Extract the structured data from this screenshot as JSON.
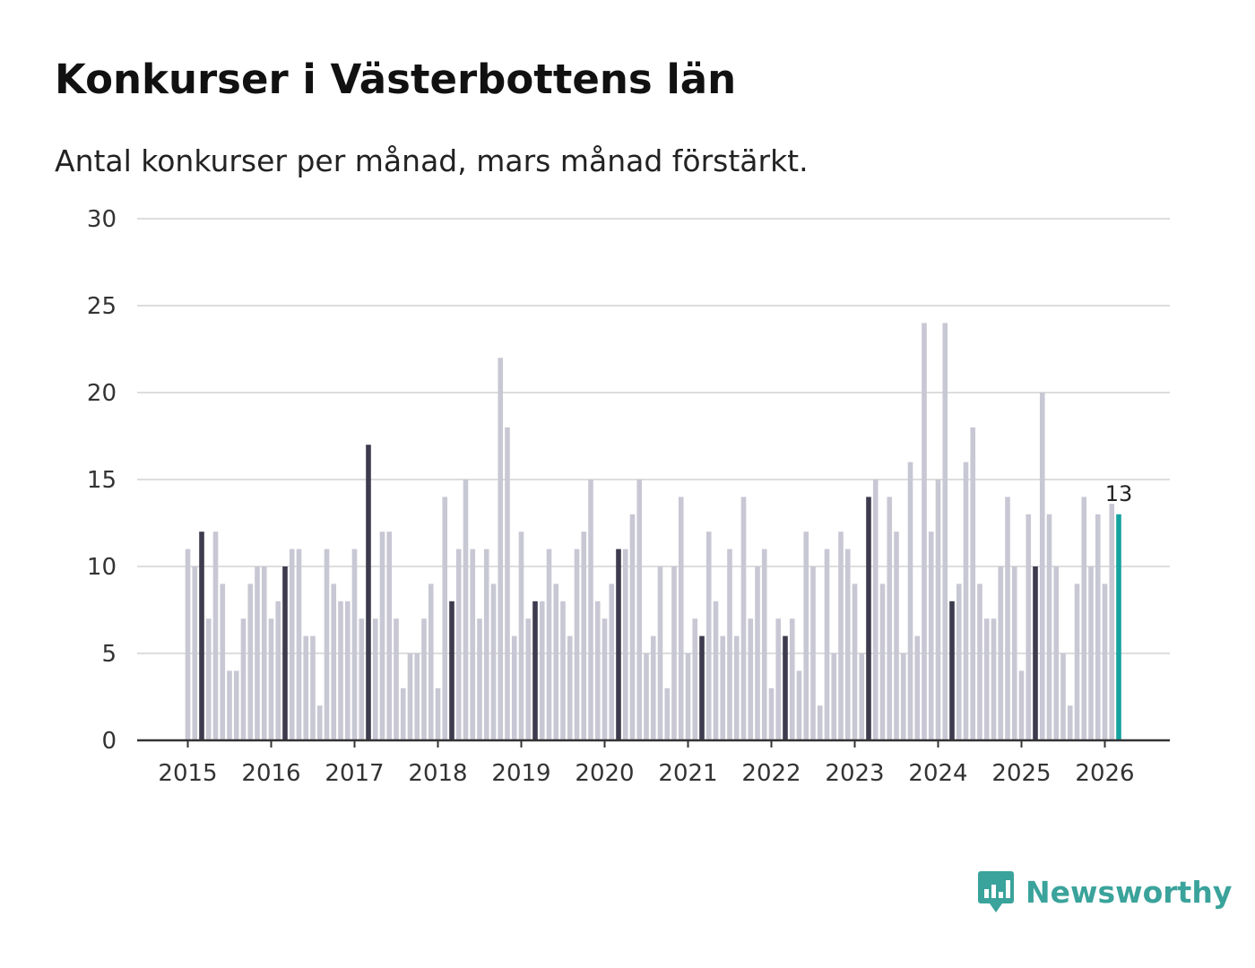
{
  "title": "Konkurser i Västerbottens län",
  "subtitle": "Antal konkurser per månad, mars månad förstärkt.",
  "brand": "Newsworthy",
  "colors": {
    "bar_default": "#c8c7d4",
    "bar_march": "#3d3b4d",
    "bar_latest": "#14a3a0",
    "grid": "#dddddd",
    "axis": "#333333",
    "brand": "#3aa39b"
  },
  "chart_data": {
    "type": "bar",
    "title": "Konkurser i Västerbottens län",
    "xlabel": "",
    "ylabel": "",
    "ylim": [
      0,
      30
    ],
    "yticks": [
      0,
      5,
      10,
      15,
      20,
      25,
      30
    ],
    "start": "2015-01",
    "highlight_month": 3,
    "x_tick_labels": [
      "2015",
      "2016",
      "2017",
      "2018",
      "2019",
      "2020",
      "2021",
      "2022",
      "2023",
      "2024",
      "2025",
      "2026"
    ],
    "latest_label": "13",
    "values": [
      11,
      10,
      12,
      7,
      12,
      9,
      4,
      4,
      7,
      9,
      10,
      10,
      7,
      8,
      10,
      11,
      11,
      6,
      6,
      2,
      11,
      9,
      8,
      8,
      11,
      7,
      17,
      7,
      12,
      12,
      7,
      3,
      5,
      5,
      7,
      9,
      3,
      14,
      8,
      11,
      15,
      11,
      7,
      11,
      9,
      22,
      18,
      6,
      12,
      7,
      8,
      8,
      11,
      9,
      8,
      6,
      11,
      12,
      15,
      8,
      7,
      9,
      11,
      11,
      13,
      15,
      5,
      6,
      10,
      3,
      10,
      14,
      5,
      7,
      6,
      12,
      8,
      6,
      11,
      6,
      14,
      7,
      10,
      11,
      3,
      7,
      6,
      7,
      4,
      12,
      10,
      2,
      11,
      5,
      12,
      11,
      9,
      5,
      14,
      15,
      9,
      14,
      12,
      5,
      16,
      6,
      24,
      12,
      15,
      24,
      8,
      9,
      16,
      18,
      9,
      7,
      7,
      10,
      14,
      10,
      4,
      13,
      10,
      20,
      13,
      10,
      5,
      2,
      9,
      14,
      10,
      13,
      9,
      13.6,
      13
    ]
  }
}
